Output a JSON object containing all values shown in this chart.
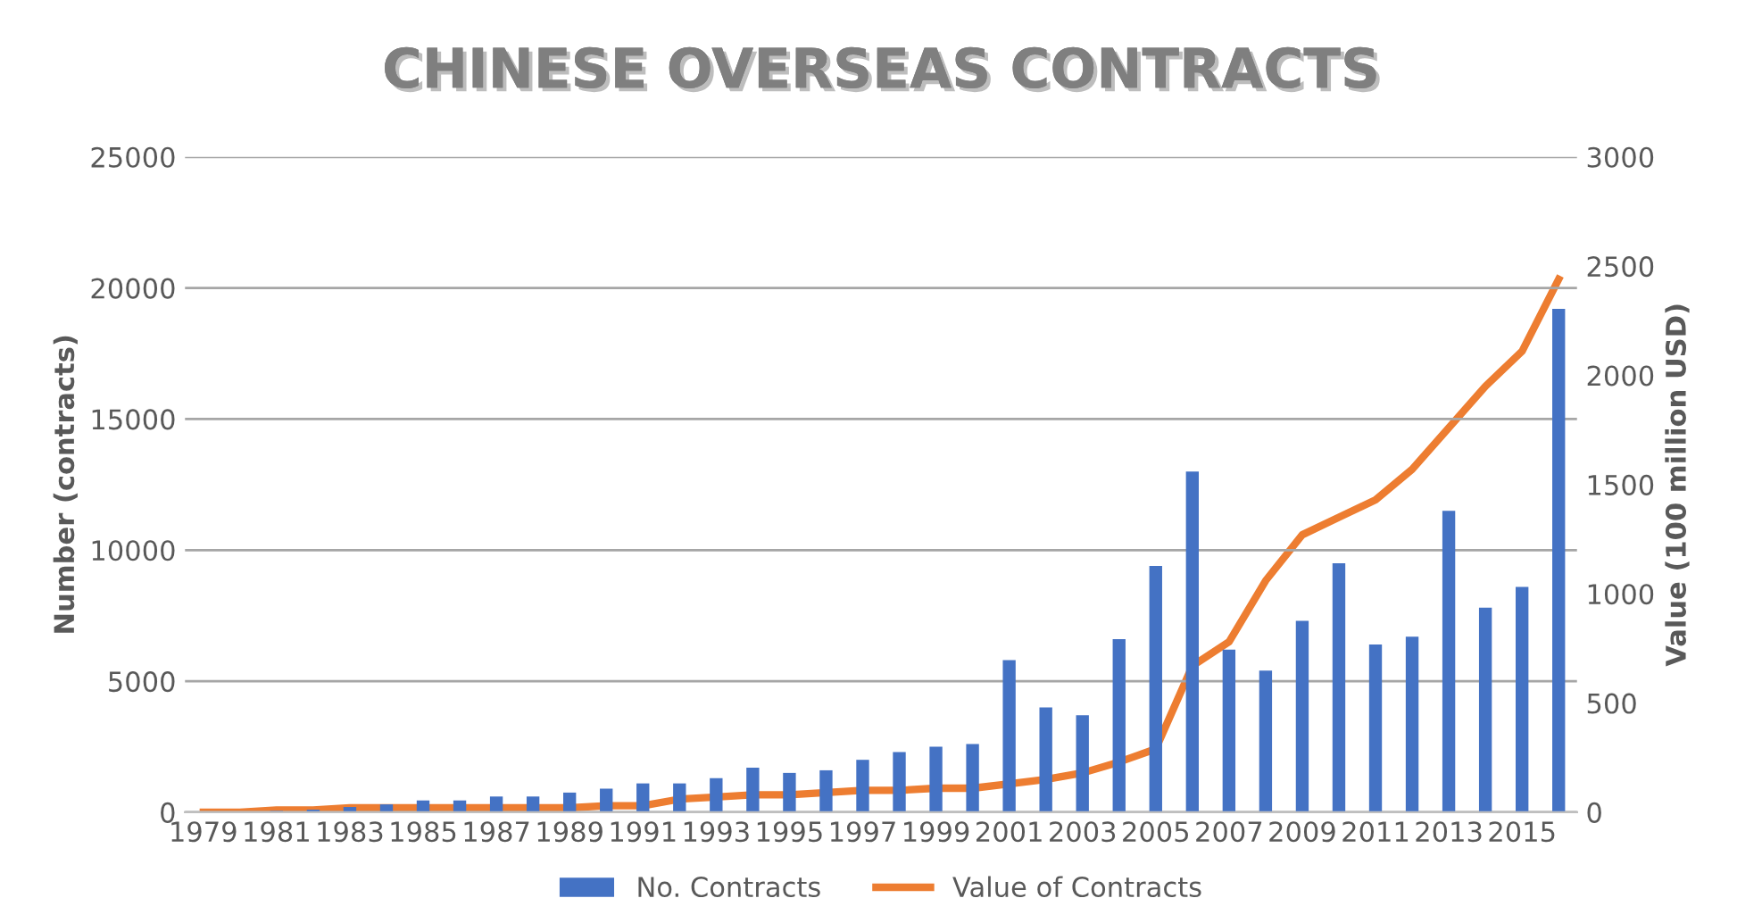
{
  "chart_data": {
    "type": "bar",
    "title": "CHINESE OVERSEAS CONTRACTS",
    "ylabel": "Number (contracts)",
    "y2label": "Value (100 million USD)",
    "categories": [
      "1979",
      null,
      "1981",
      null,
      "1983",
      null,
      "1985",
      null,
      "1987",
      null,
      "1989",
      null,
      "1991",
      null,
      "1993",
      null,
      "1995",
      null,
      "1997",
      null,
      "1999",
      null,
      "2001",
      null,
      "2003",
      null,
      "2005",
      null,
      "2007",
      null,
      "2009",
      null,
      "2011",
      null,
      "2013",
      null,
      "2015",
      null
    ],
    "series": [
      {
        "name": "No. Contracts",
        "color": "#4472c4",
        "values": [
          0,
          0,
          50,
          100,
          200,
          300,
          450,
          450,
          600,
          600,
          750,
          900,
          1100,
          1100,
          1300,
          1700,
          1500,
          1600,
          2000,
          2300,
          2500,
          2600,
          5800,
          4000,
          3700,
          6600,
          9400,
          13000,
          6200,
          5400,
          7300,
          9500,
          6400,
          6700,
          11500,
          7800,
          8600,
          19200
        ]
      },
      {
        "name": "Value of Contracts",
        "type": "line",
        "axis": "y2",
        "color": "#ed7d31",
        "values": [
          0,
          0,
          10,
          10,
          20,
          20,
          20,
          20,
          20,
          20,
          20,
          30,
          30,
          60,
          70,
          80,
          80,
          90,
          100,
          100,
          110,
          110,
          130,
          150,
          180,
          230,
          290,
          670,
          780,
          1060,
          1270,
          1350,
          1430,
          1570,
          1760,
          1950,
          2110,
          2440
        ]
      }
    ],
    "ylim": [
      0,
      25000
    ],
    "yticks": [
      0,
      5000,
      10000,
      15000,
      20000,
      25000
    ],
    "y2lim": [
      0,
      3000
    ],
    "y2ticks": [
      0,
      500,
      1000,
      1500,
      2000,
      2500,
      3000
    ],
    "grid": "y",
    "legend": "bottom"
  }
}
